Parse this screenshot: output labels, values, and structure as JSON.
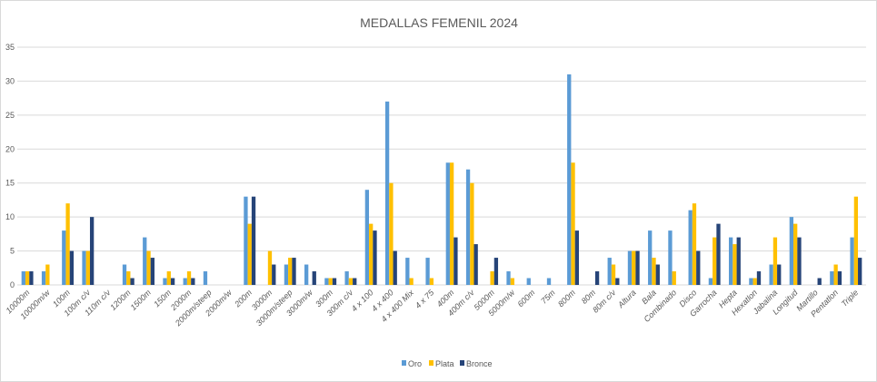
{
  "chart_data": {
    "type": "bar",
    "title": "MEDALLAS FEMENIL 2024",
    "ylim": [
      0,
      35
    ],
    "yticks": [
      0,
      5,
      10,
      15,
      20,
      25,
      30,
      35
    ],
    "grid": true,
    "legend_position": "bottom",
    "colors": {
      "Oro": "#5b9bd5",
      "Plata": "#ffc000",
      "Bronce": "#264478",
      "grid": "#d9d9d9",
      "text": "#595959"
    },
    "categories": [
      "10000m",
      "10000m/w",
      "100m",
      "100m c/v",
      "110m c/v",
      "1200m",
      "1500m",
      "150m",
      "2000m",
      "2000m/steep",
      "2000m/w",
      "200m",
      "3000m",
      "3000m/steep",
      "3000m/w",
      "300m",
      "300m c/v",
      "4 x 100",
      "4 x 400",
      "4 x 400 Mix",
      "4 x 75",
      "400m",
      "400m c/v",
      "5000m",
      "5000m/w",
      "600m",
      "75m",
      "800m",
      "80m",
      "80m c/v",
      "Altura",
      "Bala",
      "Combinado",
      "Disco",
      "Garrocha",
      "Hepta",
      "Hexatlon",
      "Jabalina",
      "Longitud",
      "Martillo",
      "Pentatlon",
      "Triple"
    ],
    "series": [
      {
        "name": "Oro",
        "values": [
          2,
          2,
          8,
          5,
          0,
          3,
          7,
          1,
          1,
          2,
          0,
          13,
          0,
          3,
          3,
          1,
          2,
          14,
          27,
          4,
          4,
          18,
          17,
          0,
          2,
          1,
          1,
          31,
          0,
          4,
          5,
          8,
          8,
          11,
          1,
          7,
          1,
          3,
          10,
          0,
          2,
          7
        ]
      },
      {
        "name": "Plata",
        "values": [
          2,
          3,
          12,
          5,
          0,
          2,
          5,
          2,
          2,
          0,
          0,
          9,
          5,
          4,
          0,
          1,
          1,
          9,
          15,
          1,
          1,
          18,
          15,
          2,
          1,
          0,
          0,
          18,
          0,
          3,
          5,
          4,
          2,
          12,
          7,
          6,
          1,
          7,
          9,
          0,
          3,
          13
        ]
      },
      {
        "name": "Bronce",
        "values": [
          2,
          0,
          5,
          10,
          0,
          1,
          4,
          1,
          1,
          0,
          0,
          13,
          3,
          4,
          2,
          1,
          1,
          8,
          5,
          0,
          0,
          7,
          6,
          4,
          0,
          0,
          0,
          8,
          2,
          1,
          5,
          3,
          0,
          5,
          9,
          7,
          2,
          3,
          7,
          1,
          2,
          4
        ]
      }
    ]
  }
}
